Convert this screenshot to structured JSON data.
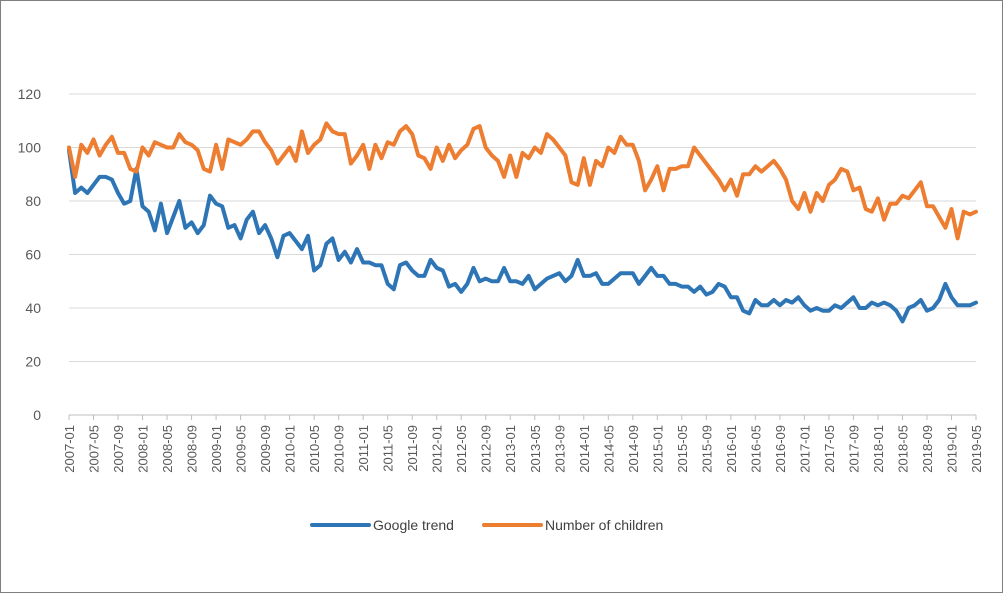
{
  "chart_data": {
    "type": "line",
    "title": "",
    "xlabel": "",
    "ylabel": "",
    "ylim": [
      0,
      120
    ],
    "yticks": [
      0,
      20,
      40,
      60,
      80,
      100,
      120
    ],
    "grid": "horizontal",
    "legend_position": "bottom",
    "x_tick_labels": [
      "2007-01",
      "2007-05",
      "2007-09",
      "2008-01",
      "2008-05",
      "2008-09",
      "2009-01",
      "2009-05",
      "2009-09",
      "2010-01",
      "2010-05",
      "2010-09",
      "2011-01",
      "2011-05",
      "2011-09",
      "2012-01",
      "2012-05",
      "2012-09",
      "2013-01",
      "2013-05",
      "2013-09",
      "2014-01",
      "2014-05",
      "2014-09",
      "2015-01",
      "2015-05",
      "2015-09",
      "2016-01",
      "2016-05",
      "2016-09",
      "2017-01",
      "2017-05",
      "2017-09",
      "2018-01",
      "2018-05",
      "2018-09",
      "2019-01",
      "2019-05"
    ],
    "x_start": "2007-01",
    "series": [
      {
        "name": "Google trend",
        "color": "#2e75b6",
        "values": [
          99,
          83,
          85,
          83,
          86,
          89,
          89,
          88,
          83,
          79,
          80,
          92,
          78,
          76,
          69,
          79,
          68,
          74,
          80,
          70,
          72,
          68,
          71,
          82,
          79,
          78,
          70,
          71,
          66,
          73,
          76,
          68,
          71,
          66,
          59,
          67,
          68,
          65,
          62,
          67,
          54,
          56,
          64,
          66,
          58,
          61,
          57,
          62,
          57,
          57,
          56,
          56,
          49,
          47,
          56,
          57,
          54,
          52,
          52,
          58,
          55,
          54,
          48,
          49,
          46,
          49,
          55,
          50,
          51,
          50,
          50,
          55,
          50,
          50,
          49,
          52,
          47,
          49,
          51,
          52,
          53,
          50,
          52,
          58,
          52,
          52,
          53,
          49,
          49,
          51,
          53,
          53,
          53,
          49,
          52,
          55,
          52,
          52,
          49,
          49,
          48,
          48,
          46,
          48,
          45,
          46,
          49,
          48,
          44,
          44,
          39,
          38,
          43,
          41,
          41,
          43,
          41,
          43,
          42,
          44,
          41,
          39,
          40,
          39,
          39,
          41,
          40,
          42,
          44,
          40,
          40,
          42,
          41,
          42,
          41,
          39,
          35,
          40,
          41,
          43,
          39,
          40,
          43,
          49,
          44,
          41,
          41,
          41,
          42
        ]
      },
      {
        "name": "Number of children",
        "color": "#ed7d31",
        "values": [
          100,
          89,
          101,
          98,
          103,
          97,
          101,
          104,
          98,
          98,
          92,
          91,
          100,
          97,
          102,
          101,
          100,
          100,
          105,
          102,
          101,
          99,
          92,
          91,
          101,
          92,
          103,
          102,
          101,
          103,
          106,
          106,
          102,
          99,
          94,
          97,
          100,
          95,
          106,
          98,
          101,
          103,
          109,
          106,
          105,
          105,
          94,
          97,
          101,
          92,
          101,
          96,
          102,
          101,
          106,
          108,
          105,
          97,
          96,
          92,
          100,
          95,
          101,
          96,
          99,
          101,
          107,
          108,
          100,
          97,
          95,
          89,
          97,
          89,
          98,
          96,
          100,
          98,
          105,
          103,
          100,
          97,
          87,
          86,
          96,
          86,
          95,
          93,
          100,
          98,
          104,
          101,
          101,
          95,
          84,
          88,
          93,
          84,
          92,
          92,
          93,
          93,
          100,
          97,
          94,
          91,
          88,
          84,
          88,
          82,
          90,
          90,
          93,
          91,
          93,
          95,
          92,
          88,
          80,
          77,
          83,
          76,
          83,
          80,
          86,
          88,
          92,
          91,
          84,
          85,
          77,
          76,
          81,
          73,
          79,
          79,
          82,
          81,
          84,
          87,
          78,
          78,
          74,
          70,
          77,
          66,
          76,
          75,
          76
        ]
      }
    ]
  }
}
